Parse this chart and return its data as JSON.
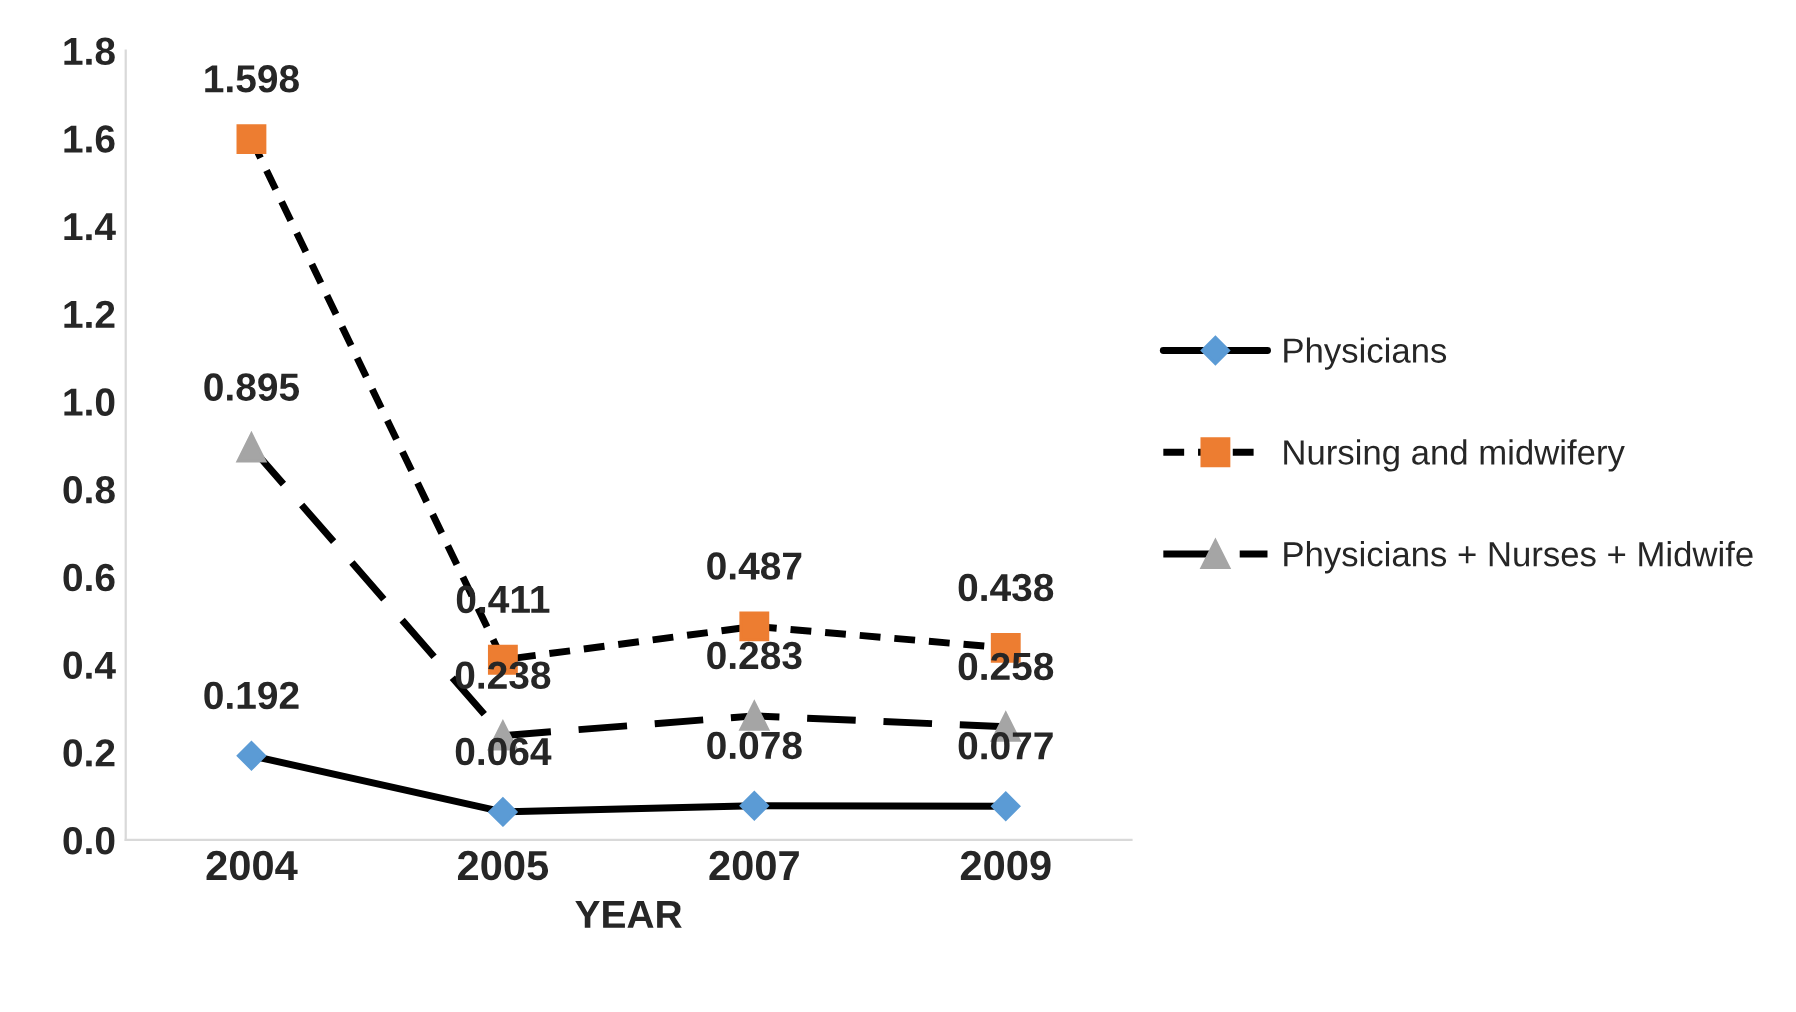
{
  "chart_data": {
    "type": "line",
    "xlabel": "YEAR",
    "categories": [
      "2004",
      "2005",
      "2007",
      "2009"
    ],
    "series": [
      {
        "name": "Physicians",
        "color": "#5b9bd5",
        "marker": "diamond",
        "line_style": "solid",
        "values": [
          0.192,
          0.064,
          0.078,
          0.077
        ]
      },
      {
        "name": "Nursing and midwifery",
        "color": "#ed7d31",
        "marker": "square",
        "line_style": "dotted",
        "values": [
          1.598,
          0.411,
          0.487,
          0.438
        ]
      },
      {
        "name": "Physicians + Nurses + Midwife",
        "color": "#a5a5a5",
        "marker": "triangle",
        "line_style": "dashed",
        "values": [
          0.895,
          0.238,
          0.283,
          0.258
        ]
      }
    ],
    "ylim": [
      0,
      1.8
    ],
    "yticks": [
      {
        "value": 0,
        "label": "0.0"
      },
      {
        "value": 0.2,
        "label": "0.2"
      },
      {
        "value": 0.4,
        "label": "0.4"
      },
      {
        "value": 0.6,
        "label": "0.6"
      },
      {
        "value": 0.8,
        "label": "0.8"
      },
      {
        "value": 1.0,
        "label": "1.0"
      },
      {
        "value": 1.2,
        "label": "1.2"
      },
      {
        "value": 1.4,
        "label": "1.4"
      },
      {
        "value": 1.6,
        "label": "1.6"
      },
      {
        "value": 1.8,
        "label": "1.8"
      }
    ],
    "data_labels": true,
    "grid": false,
    "legend": "right"
  }
}
